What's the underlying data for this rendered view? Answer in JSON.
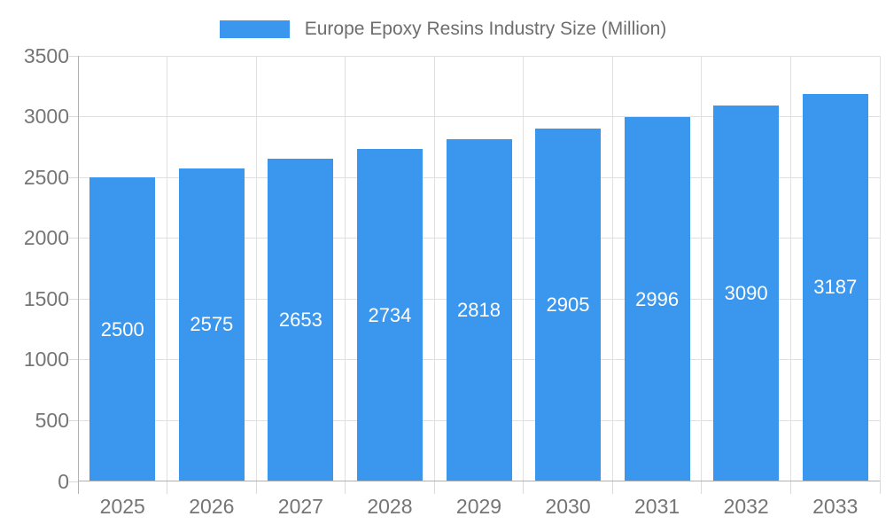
{
  "chart_data": {
    "type": "bar",
    "title": "Europe Epoxy Resins Industry Size (Million)",
    "legend_position": "top",
    "categories": [
      "2025",
      "2026",
      "2027",
      "2028",
      "2029",
      "2030",
      "2031",
      "2032",
      "2033"
    ],
    "values": [
      2500,
      2575,
      2653,
      2734,
      2818,
      2905,
      2996,
      3090,
      3187
    ],
    "xlabel": "",
    "ylabel": "",
    "ylim": [
      0,
      3500
    ],
    "yticks": [
      0,
      500,
      1000,
      1500,
      2000,
      2500,
      3000,
      3500
    ],
    "grid": true,
    "value_labels": "inside-center"
  },
  "colors": {
    "bar": "#3B97ED",
    "grid": "#E0E0E0",
    "axis_line": "#B0B0B0",
    "tick": "#DADADA",
    "axis_label": "#757575",
    "value_label": "#FFFFFF",
    "legend_text": "#6E6E6E",
    "background": "#FFFFFF"
  }
}
